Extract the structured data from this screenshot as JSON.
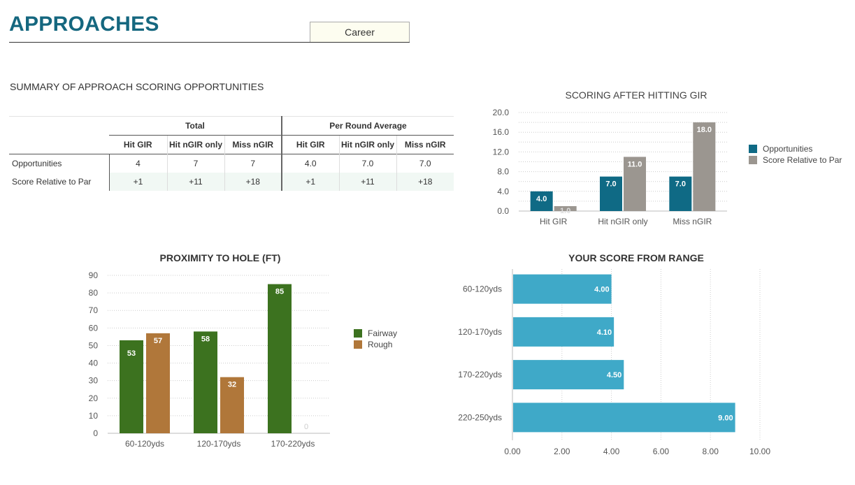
{
  "header": {
    "title": "APPROACHES",
    "period_selector": "Career"
  },
  "summary": {
    "title": "SUMMARY OF APPROACH SCORING OPPORTUNITIES",
    "group_headers": [
      "Total",
      "Per Round Average"
    ],
    "column_headers": [
      "Hit GIR",
      "Hit nGIR only",
      "Miss nGIR",
      "Hit GIR",
      "Hit nGIR only",
      "Miss nGIR"
    ],
    "rows": [
      {
        "label": "Opportunities",
        "values": [
          "4",
          "7",
          "7",
          "4.0",
          "7.0",
          "7.0"
        ]
      },
      {
        "label": "Score Relative to Par",
        "values": [
          "+1",
          "+11",
          "+18",
          "+1",
          "+11",
          "+18"
        ]
      }
    ]
  },
  "colors": {
    "title": "#15677f",
    "opportunities": "#0f6a85",
    "score_relative": "#9b9690",
    "fairway": "#3c721f",
    "rough": "#b0773a",
    "range_bar": "#3fa9c8",
    "row_shade": "#f1f8f4"
  },
  "chart_data": [
    {
      "type": "bar",
      "title": "SCORING AFTER HITTING GIR",
      "categories": [
        "Hit GIR",
        "Hit nGIR only",
        "Miss nGIR"
      ],
      "series": [
        {
          "name": "Opportunities",
          "values": [
            4.0,
            7.0,
            7.0
          ]
        },
        {
          "name": "Score Relative to Par",
          "values": [
            1.0,
            11.0,
            18.0
          ]
        }
      ],
      "yticks": [
        "0.0",
        "4.0",
        "8.0",
        "12.0",
        "16.0",
        "20.0"
      ],
      "ylim": [
        0,
        20
      ],
      "grid": true,
      "legend": "right",
      "xlabel": "",
      "ylabel": ""
    },
    {
      "type": "bar",
      "title": "PROXIMITY TO HOLE (FT)",
      "categories": [
        "60-120yds",
        "120-170yds",
        "170-220yds"
      ],
      "series": [
        {
          "name": "Fairway",
          "values": [
            53,
            58,
            85
          ]
        },
        {
          "name": "Rough",
          "values": [
            57,
            32,
            0
          ]
        }
      ],
      "yticks": [
        "0",
        "10",
        "20",
        "30",
        "40",
        "50",
        "60",
        "70",
        "80",
        "90"
      ],
      "ylim": [
        0,
        90
      ],
      "grid": true,
      "legend": "right",
      "xlabel": "",
      "ylabel": ""
    },
    {
      "type": "bar",
      "orientation": "horizontal",
      "title": "YOUR SCORE FROM RANGE",
      "categories": [
        "60-120yds",
        "120-170yds",
        "170-220yds",
        "220-250yds"
      ],
      "values": [
        4.0,
        4.1,
        4.5,
        9.0
      ],
      "labels": [
        "4.00",
        "4.10",
        "4.50",
        "9.00"
      ],
      "xticks": [
        "0.00",
        "2.00",
        "4.00",
        "6.00",
        "8.00",
        "10.00"
      ],
      "xlim": [
        0,
        10
      ],
      "grid": true,
      "xlabel": "",
      "ylabel": ""
    }
  ]
}
